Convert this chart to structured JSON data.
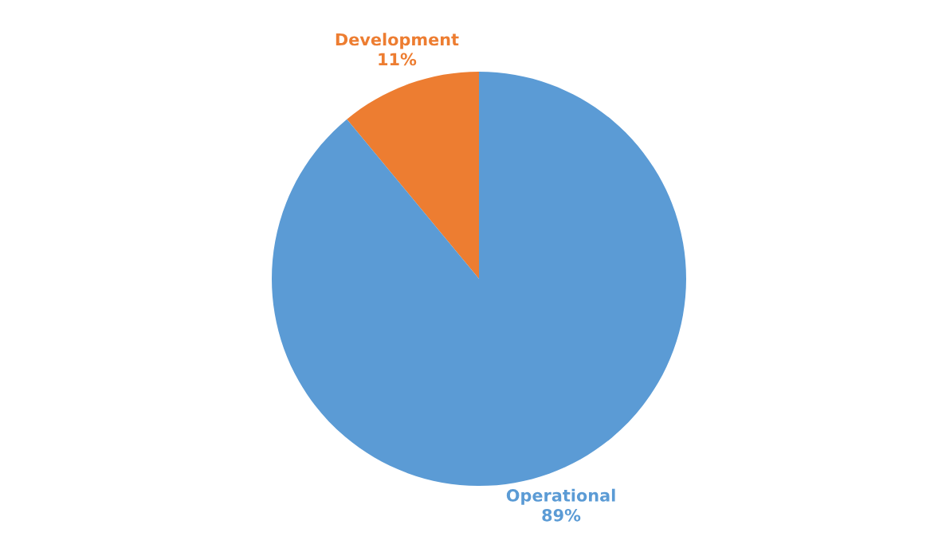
{
  "chart_data": {
    "type": "pie",
    "categories": [
      "Development",
      "Operational"
    ],
    "values": [
      11,
      89
    ],
    "colors": [
      "#ed7d31",
      "#5b9bd5"
    ],
    "value_labels": [
      "11%",
      "89%"
    ]
  }
}
